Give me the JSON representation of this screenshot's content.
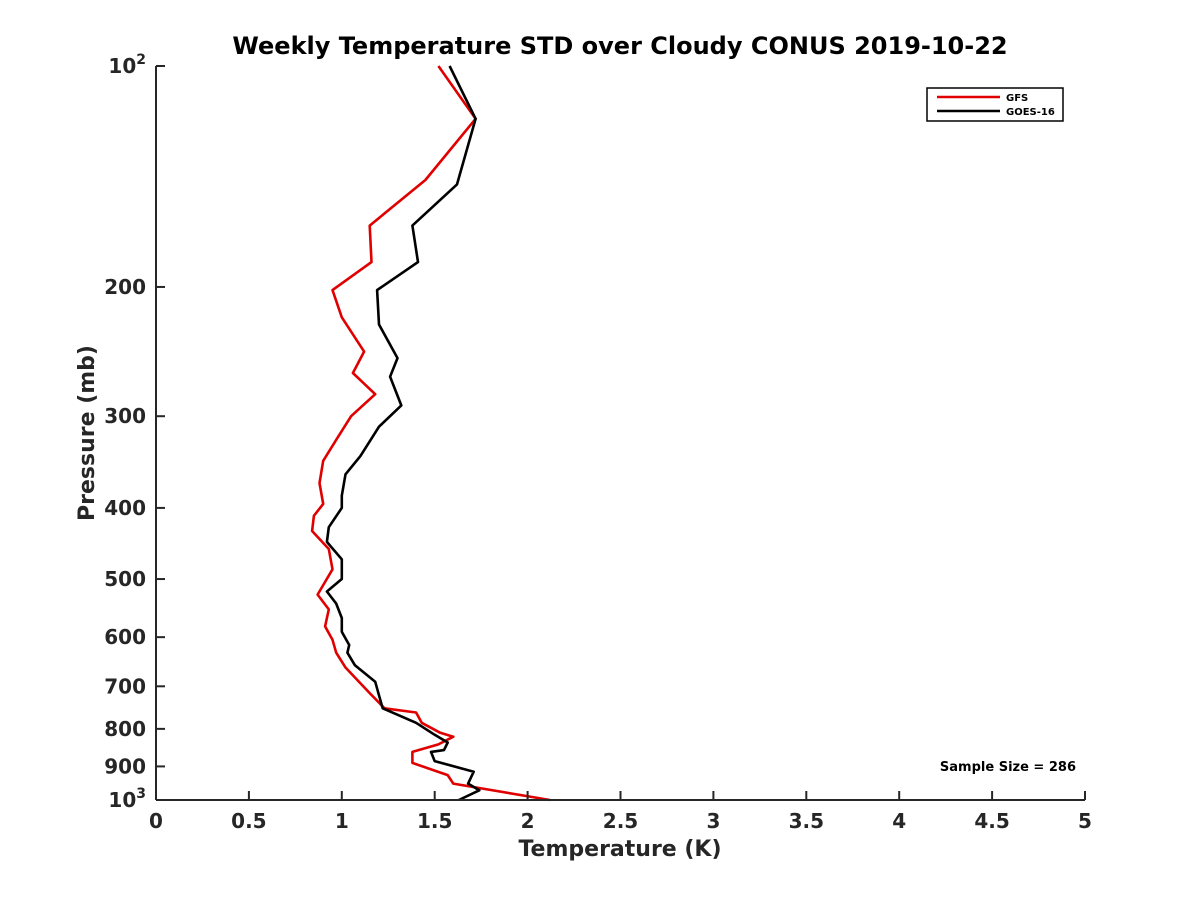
{
  "chart_data": {
    "type": "line",
    "title": "Weekly Temperature STD over Cloudy CONUS 2019-10-22",
    "xlabel": "Temperature (K)",
    "ylabel": "Pressure (mb)",
    "xlim": [
      0,
      5
    ],
    "ylim": [
      100,
      1000
    ],
    "y_scale": "log",
    "y_reversed": true,
    "grid": false,
    "legend_position": "top-right",
    "x_ticks": [
      0,
      0.5,
      1,
      1.5,
      2,
      2.5,
      3,
      3.5,
      4,
      4.5,
      5
    ],
    "x_tick_labels": [
      "0",
      "0.5",
      "1",
      "1.5",
      "2",
      "2.5",
      "3",
      "3.5",
      "4",
      "4.5",
      "5"
    ],
    "y_ticks": [
      100,
      200,
      300,
      400,
      500,
      600,
      700,
      800,
      900,
      1000
    ],
    "y_tick_labels": [
      {
        "base": "10",
        "exp": "2"
      },
      {
        "base": "200",
        "exp": ""
      },
      {
        "base": "300",
        "exp": ""
      },
      {
        "base": "400",
        "exp": ""
      },
      {
        "base": "500",
        "exp": ""
      },
      {
        "base": "600",
        "exp": ""
      },
      {
        "base": "700",
        "exp": ""
      },
      {
        "base": "800",
        "exp": ""
      },
      {
        "base": "900",
        "exp": ""
      },
      {
        "base": "10",
        "exp": "3"
      }
    ],
    "annotation": "Sample Size = 286",
    "series": [
      {
        "name": "GFS",
        "color": "#e00000",
        "x": [
          1.52,
          1.72,
          1.45,
          1.15,
          1.16,
          0.95,
          1.0,
          1.12,
          1.06,
          1.18,
          1.05,
          0.98,
          0.9,
          0.88,
          0.9,
          0.85,
          0.84,
          0.93,
          0.95,
          0.87,
          0.93,
          0.91,
          0.95,
          0.97,
          1.02,
          1.15,
          1.23,
          1.4,
          1.43,
          1.53,
          1.6,
          1.52,
          1.38,
          1.38,
          1.57,
          1.6,
          2.12
        ],
        "y": [
          100,
          118,
          143,
          165,
          185,
          202,
          220,
          245,
          262,
          280,
          300,
          320,
          345,
          370,
          395,
          410,
          430,
          455,
          485,
          525,
          550,
          580,
          605,
          630,
          660,
          715,
          750,
          760,
          785,
          810,
          820,
          840,
          860,
          890,
          925,
          950,
          1000
        ]
      },
      {
        "name": "GOES-16",
        "color": "#000000",
        "x": [
          1.58,
          1.72,
          1.62,
          1.38,
          1.41,
          1.19,
          1.2,
          1.3,
          1.26,
          1.32,
          1.2,
          1.1,
          1.02,
          1.0,
          1.0,
          0.93,
          0.92,
          1.0,
          1.0,
          0.92,
          0.97,
          1.0,
          1.0,
          1.04,
          1.03,
          1.07,
          1.18,
          1.2,
          1.22,
          1.4,
          1.5,
          1.57,
          1.55,
          1.48,
          1.5,
          1.71,
          1.68,
          1.74,
          1.63
        ],
        "y": [
          100,
          118,
          145,
          165,
          185,
          202,
          225,
          250,
          265,
          290,
          310,
          340,
          360,
          385,
          400,
          425,
          445,
          470,
          500,
          520,
          540,
          565,
          590,
          615,
          630,
          655,
          690,
          720,
          750,
          785,
          815,
          835,
          855,
          860,
          885,
          915,
          950,
          970,
          1000
        ]
      }
    ]
  }
}
